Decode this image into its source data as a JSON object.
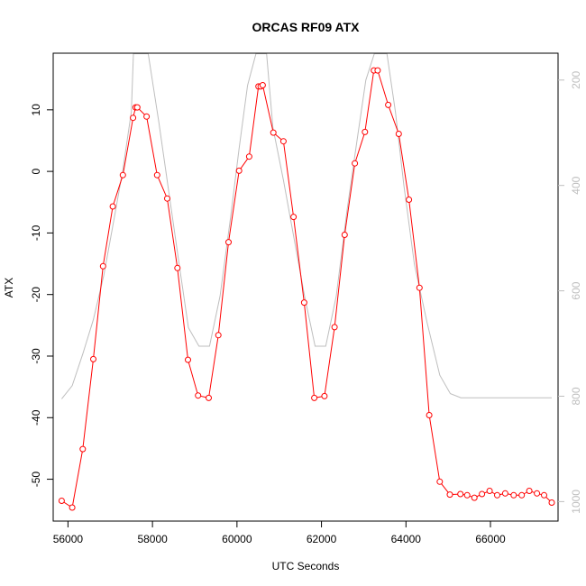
{
  "chart_data": {
    "type": "line",
    "title": "ORCAS RF09 ATX",
    "xlabel": "UTC Seconds",
    "ylabel": "ATX",
    "xlim": [
      55650,
      67600
    ],
    "ylim": [
      -56.8,
      19.2
    ],
    "x_ticks": [
      {
        "value": 56000,
        "label": "56000"
      },
      {
        "value": 58000,
        "label": "58000"
      },
      {
        "value": 60000,
        "label": "60000"
      },
      {
        "value": 62000,
        "label": "62000"
      },
      {
        "value": 64000,
        "label": "64000"
      },
      {
        "value": 66000,
        "label": "66000"
      }
    ],
    "y_ticks": [
      {
        "value": 10,
        "label": "10"
      },
      {
        "value": 0,
        "label": "0"
      },
      {
        "value": -10,
        "label": "-10"
      },
      {
        "value": -20,
        "label": "-20"
      },
      {
        "value": -30,
        "label": "-30"
      },
      {
        "value": -40,
        "label": "-40"
      },
      {
        "value": -50,
        "label": "-50"
      }
    ],
    "y2lim": [
      1037,
      149
    ],
    "y2_ticks": [
      {
        "value": 200,
        "label": "200"
      },
      {
        "value": 400,
        "label": "400"
      },
      {
        "value": 600,
        "label": "600"
      },
      {
        "value": 800,
        "label": "800"
      },
      {
        "value": 1000,
        "label": "1000"
      }
    ],
    "series": [
      {
        "role": "primary",
        "color": "#ff0000",
        "marker": "open-circle",
        "x": [
          55850,
          56100,
          56350,
          56600,
          56830,
          57060,
          57300,
          57540,
          57600,
          57640,
          57860,
          58110,
          58350,
          58590,
          58840,
          59080,
          59330,
          59560,
          59800,
          60050,
          60290,
          60510,
          60560,
          60610,
          60860,
          61100,
          61340,
          61590,
          61830,
          62070,
          62310,
          62550,
          62790,
          63030,
          63240,
          63330,
          63580,
          63830,
          64070,
          64320,
          64550,
          64800,
          65040,
          65290,
          65450,
          65620,
          65800,
          65980,
          66160,
          66350,
          66550,
          66740,
          66920,
          67100,
          67270,
          67450
        ],
        "y": [
          -53.5,
          -54.6,
          -45.1,
          -30.5,
          -15.4,
          -5.7,
          -0.6,
          8.7,
          10.4,
          10.4,
          8.9,
          -0.6,
          -4.4,
          -15.7,
          -30.6,
          -36.4,
          -36.8,
          -26.6,
          -11.5,
          0.1,
          2.4,
          13.8,
          13.8,
          14.0,
          6.3,
          4.9,
          -7.4,
          -21.3,
          -36.8,
          -36.5,
          -25.3,
          -10.3,
          1.3,
          6.4,
          16.4,
          16.4,
          10.8,
          6.1,
          -4.6,
          -18.9,
          -39.6,
          -50.4,
          -52.5,
          -52.4,
          -52.6,
          -53.0,
          -52.4,
          -51.9,
          -52.6,
          -52.3,
          -52.6,
          -52.6,
          -51.9,
          -52.3,
          -52.6,
          -53.8
        ]
      },
      {
        "role": "secondary",
        "axis": "right",
        "color": "#bebebe",
        "x": [
          55850,
          56100,
          56350,
          56600,
          56850,
          57100,
          57300,
          57500,
          57550,
          57900,
          58150,
          58400,
          58650,
          58850,
          59100,
          59350,
          59600,
          59850,
          60050,
          60250,
          60450,
          60700,
          60850,
          61100,
          61350,
          61600,
          61850,
          62100,
          62350,
          62600,
          62850,
          63050,
          63250,
          63550,
          63750,
          63950,
          64200,
          64500,
          64800,
          65050,
          65300,
          65600,
          66000,
          66500,
          67000,
          67450
        ],
        "y": [
          805,
          780,
          720,
          655,
          570,
          460,
          370,
          260,
          150,
          150,
          280,
          420,
          560,
          670,
          705,
          705,
          610,
          460,
          330,
          210,
          150,
          150,
          290,
          390,
          500,
          610,
          705,
          705,
          610,
          450,
          310,
          200,
          150,
          150,
          260,
          400,
          550,
          660,
          760,
          795,
          803,
          803,
          803,
          803,
          803,
          803
        ]
      }
    ]
  }
}
